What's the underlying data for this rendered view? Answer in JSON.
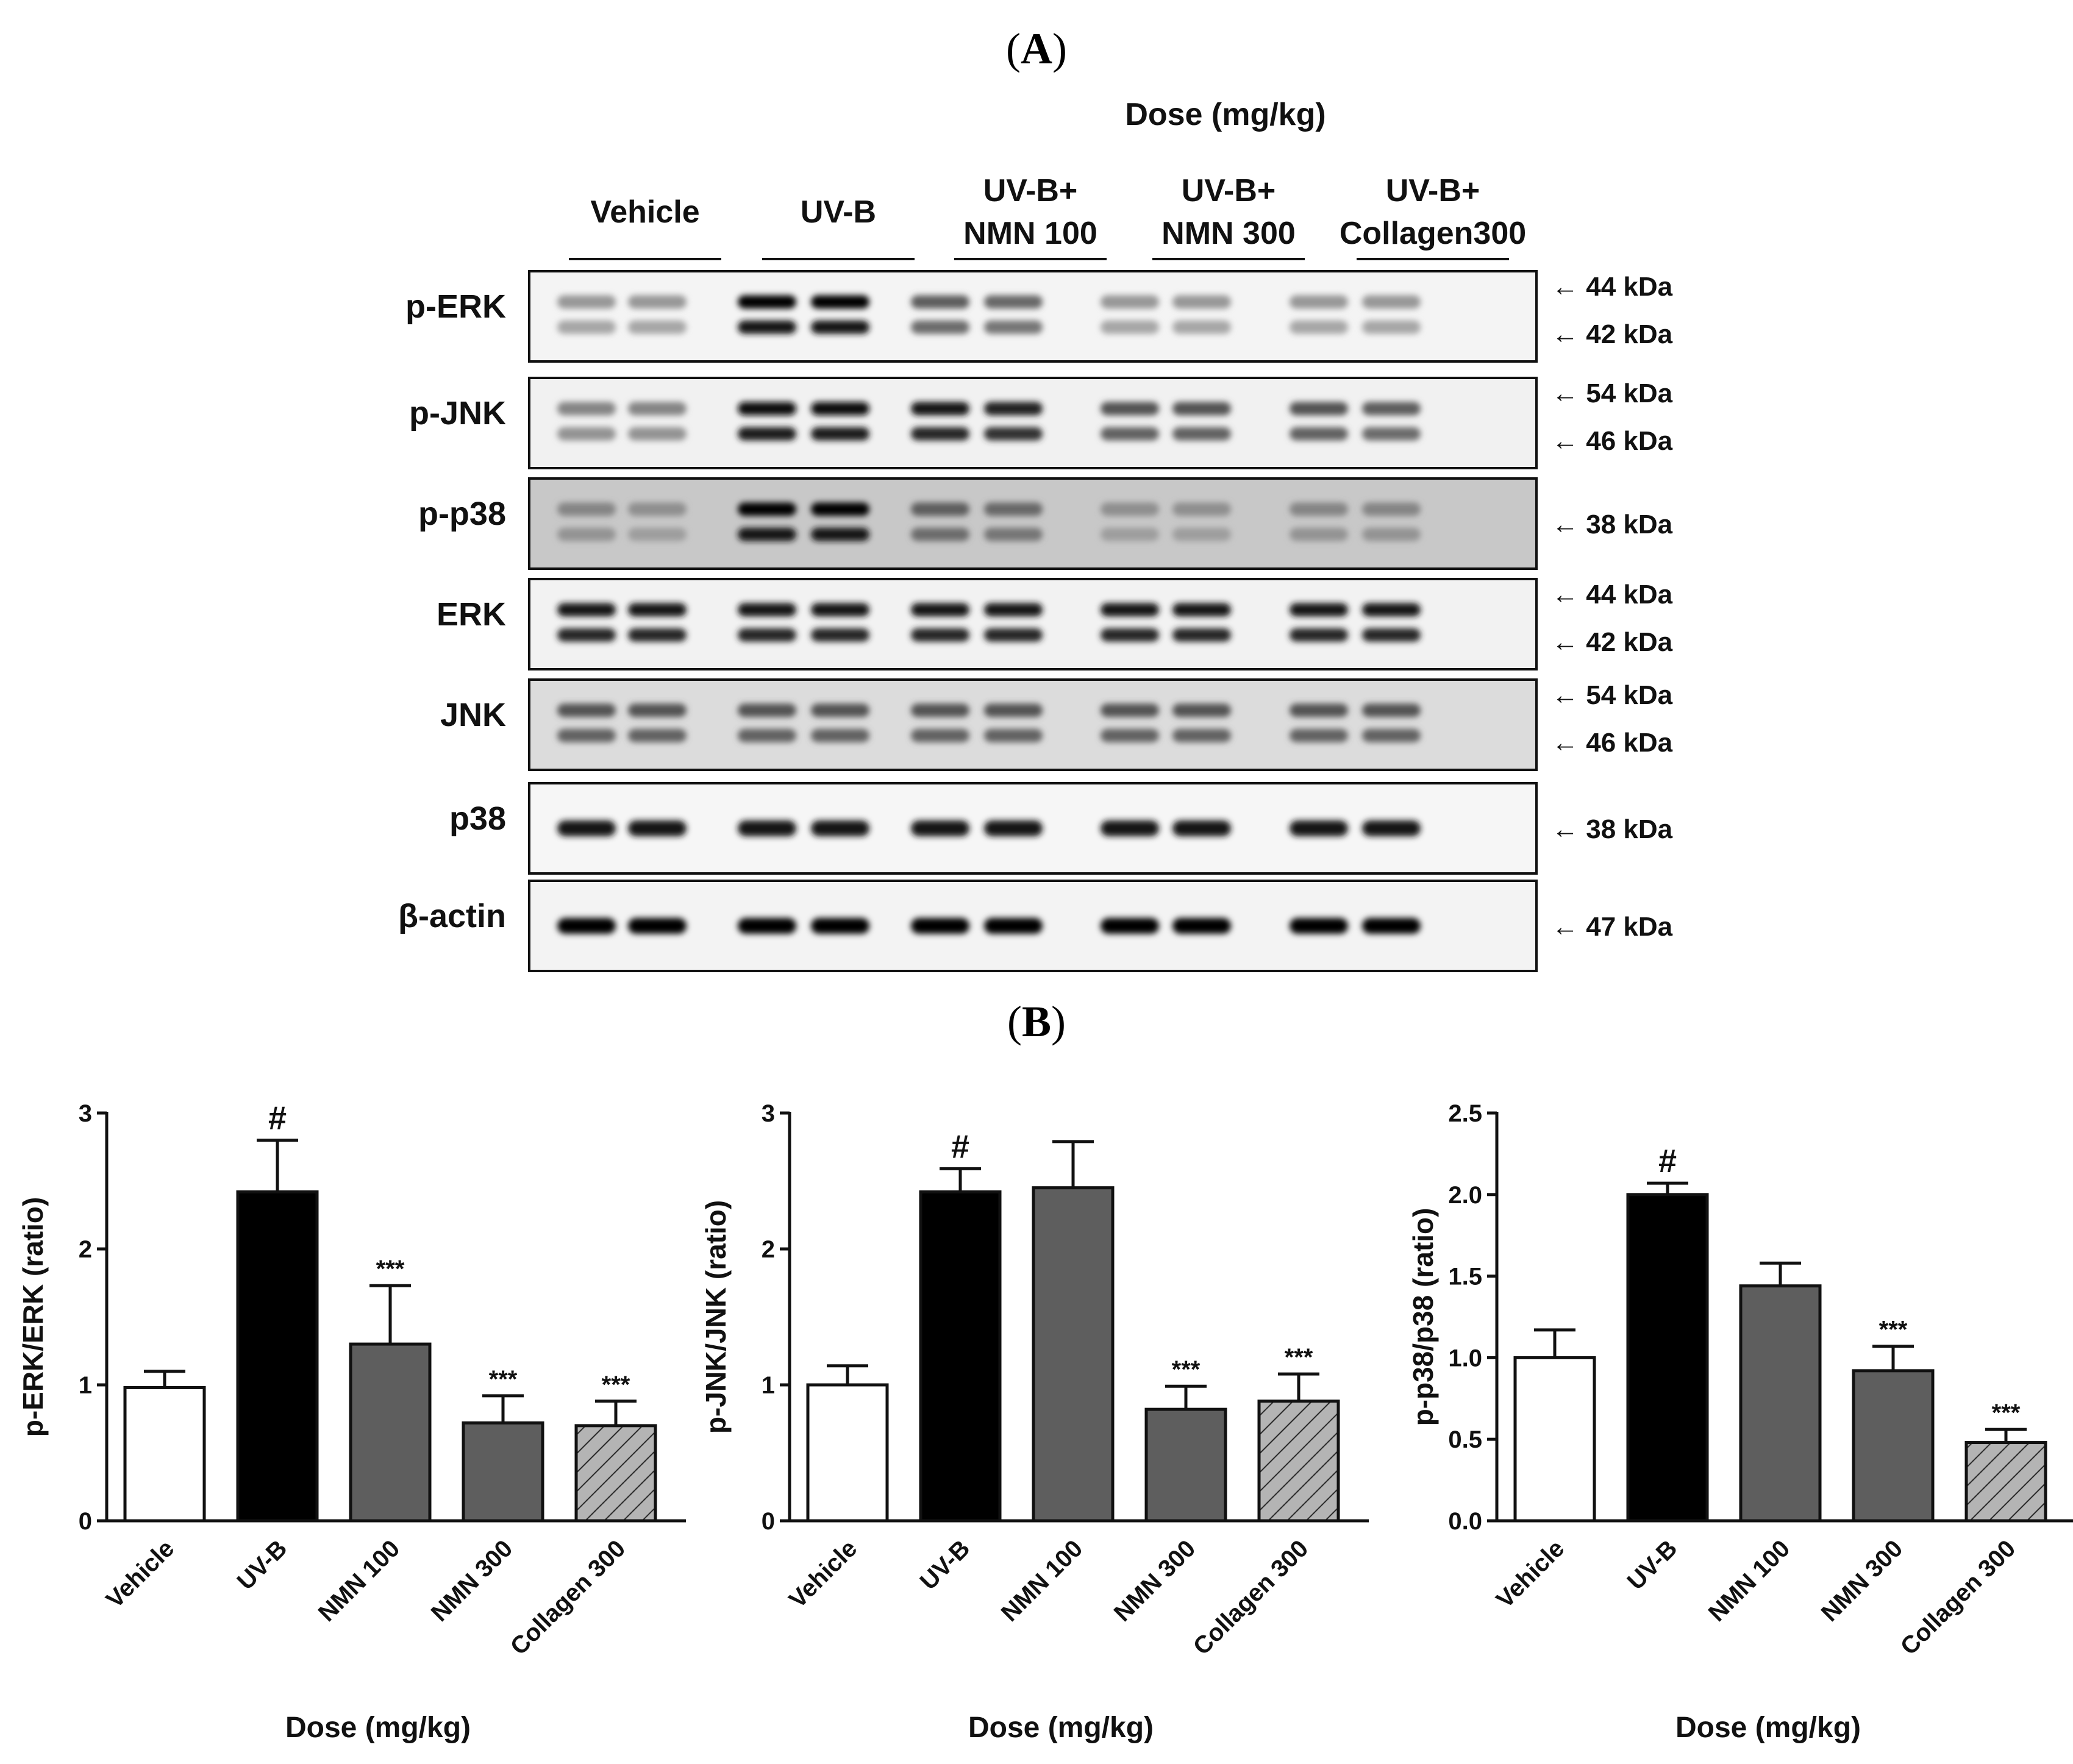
{
  "panel_a": {
    "letter": "A",
    "dose_header": "Dose (mg/kg)",
    "groups": [
      {
        "line1": "",
        "line2": "Vehicle"
      },
      {
        "line1": "",
        "line2": "UV-B"
      },
      {
        "line1": "UV-B+",
        "line2": "NMN 100"
      },
      {
        "line1": "UV-B+",
        "line2": "NMN 300"
      },
      {
        "line1": "UV-B+",
        "line2": "Collagen300"
      }
    ],
    "blots": [
      {
        "name": "p-ERK",
        "markers": [
          "← 44 kDa",
          "← 42 kDa"
        ],
        "bg": "#f4f4f4",
        "intensity": [
          0.25,
          0.25,
          1.0,
          1.0,
          0.55,
          0.5,
          0.25,
          0.25,
          0.25,
          0.25
        ],
        "double": true
      },
      {
        "name": "p-JNK",
        "markers": [
          "← 54 kDa",
          "← 46 kDa"
        ],
        "bg": "#f1f1f1",
        "intensity": [
          0.35,
          0.35,
          0.95,
          0.95,
          0.9,
          0.85,
          0.6,
          0.6,
          0.6,
          0.55
        ],
        "double": true
      },
      {
        "name": "p-p38",
        "markers": [
          "← 38 kDa"
        ],
        "bg": "#c8c8c8",
        "intensity": [
          0.35,
          0.3,
          1.0,
          1.0,
          0.55,
          0.5,
          0.3,
          0.3,
          0.35,
          0.35
        ],
        "double": true
      },
      {
        "name": "ERK",
        "markers": [
          "← 44 kDa",
          "← 42 kDa"
        ],
        "bg": "#f2f2f2",
        "intensity": [
          0.9,
          0.9,
          0.9,
          0.9,
          0.9,
          0.9,
          0.9,
          0.9,
          0.9,
          0.9
        ],
        "double": true
      },
      {
        "name": "JNK",
        "markers": [
          "← 54 kDa",
          "← 46 kDa"
        ],
        "bg": "#dcdcdc",
        "intensity": [
          0.6,
          0.6,
          0.6,
          0.6,
          0.6,
          0.6,
          0.6,
          0.6,
          0.6,
          0.6
        ],
        "double": true
      },
      {
        "name": "p38",
        "markers": [
          "← 38 kDa"
        ],
        "bg": "#f6f6f6",
        "intensity": [
          0.9,
          0.9,
          0.9,
          0.9,
          0.9,
          0.9,
          0.9,
          0.9,
          0.9,
          0.9
        ],
        "double": false
      },
      {
        "name": "β-actin",
        "markers": [
          "← 47 kDa"
        ],
        "bg": "#f3f3f3",
        "intensity": [
          1.0,
          1.0,
          1.0,
          1.0,
          1.0,
          1.0,
          1.0,
          1.0,
          1.0,
          1.0
        ],
        "double": false
      }
    ]
  },
  "panel_b_letter": "B",
  "colors": {
    "vehicle": "#ffffff",
    "uvb": "#000000",
    "nmn": "#5e5e5e",
    "collagen": "#b4b4b4"
  },
  "chart_data": [
    {
      "type": "bar",
      "categories": [
        "Vehicle",
        "UV-B",
        "NMN 100",
        "NMN 300",
        "Collagen 300"
      ],
      "values": [
        0.98,
        2.42,
        1.3,
        0.72,
        0.7
      ],
      "errors": [
        0.12,
        0.38,
        0.43,
        0.2,
        0.18
      ],
      "annotations": [
        "",
        "#",
        "***",
        "***",
        "***"
      ],
      "xlabel": "Dose (mg/kg)",
      "ylabel": "p-ERK/ERK (ratio)",
      "ylim": [
        0,
        3
      ],
      "yticks": [
        "0",
        "1",
        "2",
        "3"
      ],
      "grid": false
    },
    {
      "type": "bar",
      "categories": [
        "Vehicle",
        "UV-B",
        "NMN 100",
        "NMN 300",
        "Collagen 300"
      ],
      "values": [
        1.0,
        2.42,
        2.45,
        0.82,
        0.88
      ],
      "errors": [
        0.14,
        0.17,
        0.34,
        0.17,
        0.2
      ],
      "annotations": [
        "",
        "#",
        "",
        "***",
        "***"
      ],
      "xlabel": "Dose (mg/kg)",
      "ylabel": "p-JNK/JNK (ratio)",
      "ylim": [
        0,
        3
      ],
      "yticks": [
        "0",
        "1",
        "2",
        "3"
      ],
      "grid": false
    },
    {
      "type": "bar",
      "categories": [
        "Vehicle",
        "UV-B",
        "NMN 100",
        "NMN 300",
        "Collagen 300"
      ],
      "values": [
        1.0,
        2.0,
        1.44,
        0.92,
        0.48
      ],
      "errors": [
        0.17,
        0.07,
        0.14,
        0.15,
        0.08
      ],
      "annotations": [
        "",
        "#",
        "",
        "***",
        "***"
      ],
      "xlabel": "Dose (mg/kg)",
      "ylabel": "p-p38/p38 (ratio)",
      "ylim": [
        0,
        2.5
      ],
      "yticks": [
        "0.0",
        "0.5",
        "1.0",
        "1.5",
        "2.0",
        "2.5"
      ],
      "grid": false
    }
  ]
}
